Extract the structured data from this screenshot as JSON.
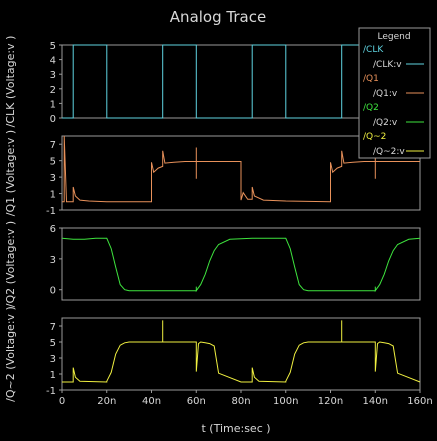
{
  "chart_data": {
    "type": "line",
    "title": "Analog Trace",
    "xlabel": "t (Time:sec )",
    "xlim": [
      0,
      160
    ],
    "x_ticks": [
      "0",
      "20n",
      "40n",
      "60n",
      "80n",
      "100n",
      "120n",
      "140n",
      "160n"
    ],
    "colors": {
      "background": "#000000",
      "frame": "#9a9a9a",
      "text": "#d8d8d8",
      "clk": "#5fd3e0",
      "q1": "#e8915a",
      "q2": "#3ee43e",
      "q_2": "#f0f040"
    },
    "legend": {
      "title": "Legend",
      "position": "top-right",
      "entries": [
        {
          "group": "/CLK",
          "name": "/CLK:v",
          "color": "#5fd3e0"
        },
        {
          "group": "/Q1",
          "name": "/Q1:v",
          "color": "#e8915a"
        },
        {
          "group": "/Q2",
          "name": "/Q2:v",
          "color": "#3ee43e"
        },
        {
          "group": "/Q~2",
          "name": "/Q~2:v",
          "color": "#f0f040"
        }
      ]
    },
    "panels": [
      {
        "ylabel": "/CLK (Voltage:v )",
        "ylim": [
          0,
          5
        ],
        "y_ticks": [
          "0",
          "1",
          "2",
          "3",
          "4",
          "5"
        ],
        "series": [
          {
            "name": "/CLK:v",
            "color": "#5fd3e0",
            "x": [
              0,
              5,
              5,
              20,
              20,
              45,
              45,
              60,
              60,
              85,
              85,
              100,
              100,
              125,
              125,
              140,
              140,
              160
            ],
            "y": [
              0,
              0,
              5,
              5,
              0,
              0,
              5,
              5,
              0,
              0,
              5,
              5,
              0,
              0,
              5,
              5,
              0,
              0
            ]
          }
        ]
      },
      {
        "ylabel": "/Q1 (Voltage:v )",
        "ylim": [
          -1,
          8
        ],
        "y_ticks": [
          "-1",
          "1",
          "3",
          "5",
          "7"
        ],
        "series": [
          {
            "name": "/Q1:v",
            "color": "#e8915a",
            "x": [
              0,
              1,
              1,
              2,
              5,
              5,
              6,
              8,
              12,
              20,
              40,
              40,
              41,
              43,
              45,
              45,
              46,
              50,
              55,
              60,
              60,
              60,
              60,
              61,
              65,
              70,
              80,
              80,
              81,
              83,
              85,
              85,
              86,
              90,
              100,
              120,
              120,
              121,
              123,
              125,
              125,
              126,
              130,
              135,
              140,
              140,
              140,
              140,
              141,
              145,
              150,
              160
            ],
            "y": [
              0,
              0,
              8,
              0,
              0,
              1.8,
              0.7,
              0.2,
              0.1,
              0,
              0,
              4.8,
              3.6,
              4.1,
              4.3,
              6.2,
              4.7,
              4.8,
              4.9,
              4.9,
              2.8,
              6.6,
              4.9,
              4.9,
              4.9,
              4.9,
              4.9,
              0.2,
              1.1,
              0.3,
              0.3,
              1.8,
              0.7,
              0.2,
              0.1,
              0,
              4.8,
              3.6,
              4.1,
              4.3,
              6.2,
              4.7,
              4.8,
              4.9,
              4.9,
              2.8,
              6.6,
              4.9,
              4.9,
              4.9,
              4.9,
              4.9
            ]
          }
        ]
      },
      {
        "ylabel": "/Q2 (Voltage:v )",
        "ylim": [
          -1,
          6
        ],
        "y_ticks": [
          "0",
          "3",
          "6"
        ],
        "series": [
          {
            "name": "/Q2:v",
            "color": "#3ee43e",
            "x": [
              0,
              5,
              10,
              15,
              20,
              22,
              24,
              26,
              28,
              30,
              35,
              45,
              55,
              60,
              60,
              60,
              62,
              64,
              66,
              68,
              70,
              75,
              85,
              95,
              100,
              102,
              104,
              106,
              108,
              110,
              115,
              125,
              135,
              140,
              140,
              140,
              142,
              144,
              146,
              148,
              150,
              155,
              160
            ],
            "y": [
              5,
              4.9,
              4.9,
              5,
              5,
              4,
              2.2,
              0.5,
              0,
              -0.1,
              -0.1,
              -0.1,
              -0.1,
              -0.1,
              0.3,
              -0.1,
              0.5,
              1.5,
              2.8,
              3.8,
              4.4,
              4.9,
              5,
              5,
              5,
              4,
              2.2,
              0.5,
              0,
              -0.1,
              -0.1,
              -0.1,
              -0.1,
              -0.1,
              0.3,
              -0.1,
              0.5,
              1.5,
              2.8,
              3.8,
              4.4,
              4.9,
              5
            ]
          }
        ]
      },
      {
        "ylabel": "/Q~2 (Voltage:v )",
        "ylim": [
          -1,
          8
        ],
        "y_ticks": [
          "-1",
          "1",
          "3",
          "5",
          "7"
        ],
        "series": [
          {
            "name": "/Q~2:v",
            "color": "#f0f040",
            "x": [
              0,
              5,
              5,
              6,
              8,
              20,
              20,
              22,
              24,
              26,
              28,
              30,
              35,
              40,
              45,
              45,
              45,
              50,
              60,
              60,
              61,
              62,
              64,
              66,
              68,
              70,
              80,
              85,
              85,
              86,
              88,
              100,
              100,
              102,
              104,
              106,
              108,
              110,
              115,
              120,
              125,
              125,
              125,
              130,
              140,
              140,
              141,
              142,
              144,
              146,
              148,
              150,
              160
            ],
            "y": [
              0,
              0,
              1.8,
              0.6,
              0.1,
              0,
              0.1,
              1.2,
              3.5,
              4.6,
              4.9,
              5,
              5,
              5,
              5,
              7.7,
              5,
              5,
              5,
              1.3,
              4.8,
              5,
              4.9,
              4.8,
              4.5,
              1.1,
              0,
              0,
              1.8,
              0.6,
              0.1,
              0,
              0.1,
              1.2,
              3.5,
              4.6,
              4.9,
              5,
              5,
              5,
              5,
              7.7,
              5,
              5,
              5,
              1.3,
              4.8,
              5,
              4.9,
              4.8,
              4.5,
              1.1,
              0
            ]
          }
        ]
      }
    ]
  }
}
